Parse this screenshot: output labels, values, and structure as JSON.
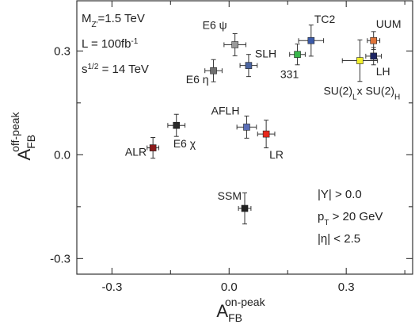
{
  "chart_data": {
    "type": "scatter",
    "title": "",
    "xlabel": {
      "base": "A",
      "sub": "FB",
      "sup": "on-peak"
    },
    "ylabel": {
      "base": "A",
      "sub": "FB",
      "sup": "off-peak"
    },
    "xlim": [
      -0.39,
      0.47
    ],
    "ylim": [
      -0.345,
      0.445
    ],
    "xticks": [
      {
        "value": -0.3,
        "label": "-0.3"
      },
      {
        "value": 0.0,
        "label": "0.0"
      },
      {
        "value": 0.3,
        "label": "0.3"
      }
    ],
    "yticks": [
      {
        "value": -0.3,
        "label": "-0.3"
      },
      {
        "value": 0.0,
        "label": "0.0"
      },
      {
        "value": 0.3,
        "label": "0.3"
      }
    ],
    "minor_xticks": [
      -0.15,
      0.15,
      0.45
    ],
    "minor_yticks": [
      -0.15,
      0.15
    ],
    "grid": false,
    "info_left": [
      {
        "base": "M",
        "sub": "Z'",
        "rest": "=1.5 TeV"
      },
      {
        "base": "L = 100fb",
        "sup": "-1"
      },
      {
        "base": "s",
        "sup": "1/2",
        "rest": " = 14 TeV"
      }
    ],
    "info_right": [
      {
        "text": "|Y| > 0.0"
      },
      {
        "base": "p",
        "sub": "T",
        "rest": " > 20 GeV"
      },
      {
        "text": "|η| < 2.5"
      }
    ],
    "points": [
      {
        "name": "E6 ψ",
        "x": 0.015,
        "y": 0.318,
        "xerr": 0.028,
        "yerr": 0.032,
        "color": "#9a9a9a",
        "label_dx": -10,
        "label_dy": -20,
        "anchor": "end"
      },
      {
        "name": "E6 η",
        "x": -0.04,
        "y": 0.243,
        "xerr": 0.022,
        "yerr": 0.032,
        "color": "#707070",
        "label_dx": -6,
        "label_dy": 16,
        "anchor": "end"
      },
      {
        "name": "SLH",
        "x": 0.05,
        "y": 0.258,
        "xerr": 0.022,
        "yerr": 0.032,
        "color": "#4a64a0",
        "label_dx": 8,
        "label_dy": -10,
        "anchor": "start"
      },
      {
        "name": "TC2",
        "x": 0.21,
        "y": 0.33,
        "xerr": 0.032,
        "yerr": 0.045,
        "color": "#3b5aa8",
        "label_dx": 4,
        "label_dy": -22,
        "anchor": "start"
      },
      {
        "name": "331",
        "x": 0.175,
        "y": 0.29,
        "xerr": 0.02,
        "yerr": 0.03,
        "color": "#39b54a",
        "label_dx": -10,
        "label_dy": 30,
        "anchor": "middle"
      },
      {
        "name": "UUM",
        "x": 0.37,
        "y": 0.33,
        "xerr": 0.016,
        "yerr": 0.026,
        "color": "#e0743a",
        "label_dx": 3,
        "label_dy": -16,
        "anchor": "start"
      },
      {
        "name": "LH",
        "x": 0.37,
        "y": 0.285,
        "xerr": 0.02,
        "yerr": 0.025,
        "color": "#1d2563",
        "label_dx": 3,
        "label_dy": 24,
        "anchor": "start"
      },
      {
        "name": "SU(2)Lx SU(2)H",
        "x": 0.335,
        "y": 0.272,
        "xerr": 0.045,
        "yerr": 0.06,
        "color": "#f2f02a",
        "label_dx": -46,
        "label_dy": 43,
        "anchor": "start",
        "rich_label": true
      },
      {
        "name": "AFLH",
        "x": 0.045,
        "y": 0.08,
        "xerr": 0.025,
        "yerr": 0.032,
        "color": "#5b6fb8",
        "label_dx": -9,
        "label_dy": -16,
        "anchor": "end"
      },
      {
        "name": "LR",
        "x": 0.095,
        "y": 0.06,
        "xerr": 0.022,
        "yerr": 0.04,
        "color": "#e8281c",
        "label_dx": 4,
        "label_dy": 31,
        "anchor": "start"
      },
      {
        "name": "E6 χ",
        "x": -0.135,
        "y": 0.085,
        "xerr": 0.022,
        "yerr": 0.032,
        "color": "#2a2a2a",
        "label_dx": -4,
        "label_dy": 28,
        "anchor": "start"
      },
      {
        "name": "ALR",
        "x": -0.195,
        "y": 0.02,
        "xerr": 0.015,
        "yerr": 0.03,
        "color": "#8b1a1a",
        "label_dx": -8,
        "label_dy": 10,
        "anchor": "end"
      },
      {
        "name": "SSM",
        "x": 0.04,
        "y": -0.155,
        "xerr": 0.016,
        "yerr": 0.045,
        "color": "#222222",
        "label_dx": -4,
        "label_dy": -11,
        "anchor": "end"
      }
    ]
  }
}
